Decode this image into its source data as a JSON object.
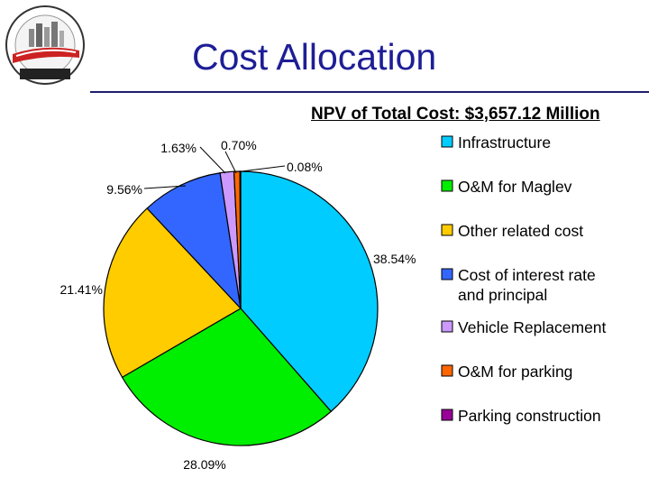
{
  "slide": {
    "title": "Cost Allocation"
  },
  "logo": {
    "top_text": "MAGLEV · PENNSYLVANIA",
    "bottom_text": "PITTSBURGH"
  },
  "chart_data": {
    "type": "pie",
    "title": "NPV of Total Cost: $3,657.12 Million",
    "legend_position": "right",
    "series": [
      {
        "name": "Infrastructure",
        "value": 38.54,
        "label": "38.54%",
        "color": "#00ccff"
      },
      {
        "name": "O&M for Maglev",
        "value": 28.09,
        "label": "28.09%",
        "color": "#00ee00"
      },
      {
        "name": "Other related cost",
        "value": 21.41,
        "label": "21.41%",
        "color": "#ffcc00"
      },
      {
        "name": "Cost of interest rate and principal",
        "legend_lines": [
          "Cost of interest rate",
          "and principal"
        ],
        "value": 9.56,
        "label": "9.56%",
        "color": "#3366ff"
      },
      {
        "name": "Vehicle Replacement",
        "value": 1.63,
        "label": "1.63%",
        "color": "#cc99ff"
      },
      {
        "name": "O&M for parking",
        "value": 0.7,
        "label": "0.70%",
        "color": "#ff6600"
      },
      {
        "name": "Parking construction",
        "value": 0.08,
        "label": "0.08%",
        "color": "#990099"
      }
    ]
  }
}
